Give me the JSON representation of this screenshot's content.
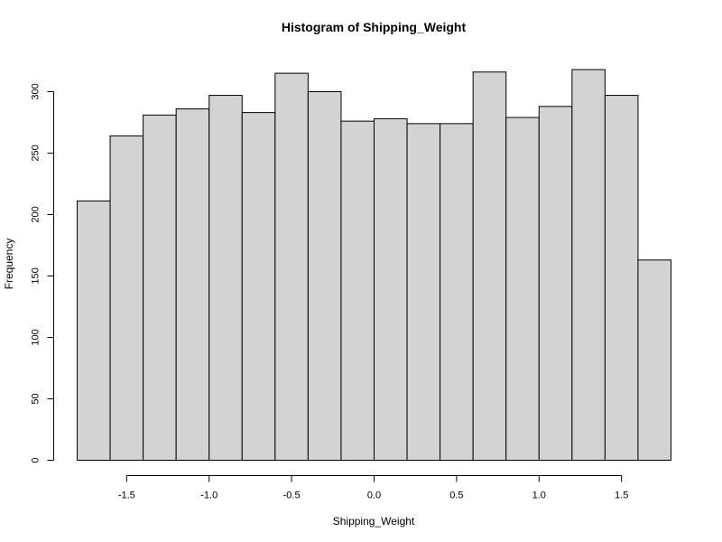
{
  "chart_data": {
    "type": "bar",
    "title": "Histogram of Shipping_Weight",
    "xlabel": "Shipping_Weight",
    "ylabel": "Frequency",
    "bin_edges": [
      -1.8,
      -1.6,
      -1.4,
      -1.2,
      -1.0,
      -0.8,
      -0.6,
      -0.4,
      -0.2,
      0.0,
      0.2,
      0.4,
      0.6,
      0.8,
      1.0,
      1.2,
      1.4,
      1.6,
      1.8
    ],
    "values": [
      211,
      264,
      281,
      286,
      297,
      283,
      315,
      300,
      276,
      278,
      274,
      274,
      316,
      279,
      288,
      318,
      297,
      163
    ],
    "xlim": [
      -1.8,
      1.8
    ],
    "ylim": [
      0,
      320
    ],
    "x_ticks": [
      -1.5,
      -1.0,
      -0.5,
      0.0,
      0.5,
      1.0,
      1.5
    ],
    "x_tick_labels": [
      "-1.5",
      "-1.0",
      "-0.5",
      "0.0",
      "0.5",
      "1.0",
      "1.5"
    ],
    "y_ticks": [
      0,
      50,
      100,
      150,
      200,
      250,
      300
    ],
    "y_tick_labels": [
      "0",
      "50",
      "100",
      "150",
      "200",
      "250",
      "300"
    ],
    "grid": false,
    "bar_color": "#d3d3d3",
    "edge_color": "#000000"
  }
}
